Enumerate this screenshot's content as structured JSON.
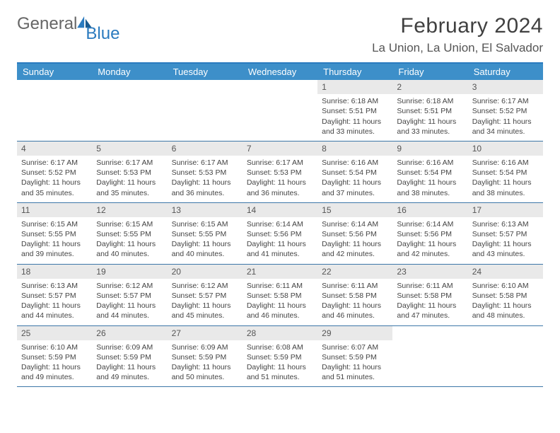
{
  "brand": {
    "part1": "General",
    "part2": "Blue"
  },
  "title": "February 2024",
  "location": "La Union, La Union, El Salvador",
  "colors": {
    "header_bar": "#3d8fc9",
    "top_rule": "#2b7bbf",
    "week_rule": "#3d77a8",
    "daynum_bg": "#e9e9e9",
    "text": "#444444",
    "title_text": "#404040"
  },
  "weekdays": [
    "Sunday",
    "Monday",
    "Tuesday",
    "Wednesday",
    "Thursday",
    "Friday",
    "Saturday"
  ],
  "grid": {
    "leading_blanks": 4,
    "days_in_month": 29
  },
  "days": {
    "1": {
      "sunrise": "6:18 AM",
      "sunset": "5:51 PM",
      "daylight": "11 hours and 33 minutes."
    },
    "2": {
      "sunrise": "6:18 AM",
      "sunset": "5:51 PM",
      "daylight": "11 hours and 33 minutes."
    },
    "3": {
      "sunrise": "6:17 AM",
      "sunset": "5:52 PM",
      "daylight": "11 hours and 34 minutes."
    },
    "4": {
      "sunrise": "6:17 AM",
      "sunset": "5:52 PM",
      "daylight": "11 hours and 35 minutes."
    },
    "5": {
      "sunrise": "6:17 AM",
      "sunset": "5:53 PM",
      "daylight": "11 hours and 35 minutes."
    },
    "6": {
      "sunrise": "6:17 AM",
      "sunset": "5:53 PM",
      "daylight": "11 hours and 36 minutes."
    },
    "7": {
      "sunrise": "6:17 AM",
      "sunset": "5:53 PM",
      "daylight": "11 hours and 36 minutes."
    },
    "8": {
      "sunrise": "6:16 AM",
      "sunset": "5:54 PM",
      "daylight": "11 hours and 37 minutes."
    },
    "9": {
      "sunrise": "6:16 AM",
      "sunset": "5:54 PM",
      "daylight": "11 hours and 38 minutes."
    },
    "10": {
      "sunrise": "6:16 AM",
      "sunset": "5:54 PM",
      "daylight": "11 hours and 38 minutes."
    },
    "11": {
      "sunrise": "6:15 AM",
      "sunset": "5:55 PM",
      "daylight": "11 hours and 39 minutes."
    },
    "12": {
      "sunrise": "6:15 AM",
      "sunset": "5:55 PM",
      "daylight": "11 hours and 40 minutes."
    },
    "13": {
      "sunrise": "6:15 AM",
      "sunset": "5:55 PM",
      "daylight": "11 hours and 40 minutes."
    },
    "14": {
      "sunrise": "6:14 AM",
      "sunset": "5:56 PM",
      "daylight": "11 hours and 41 minutes."
    },
    "15": {
      "sunrise": "6:14 AM",
      "sunset": "5:56 PM",
      "daylight": "11 hours and 42 minutes."
    },
    "16": {
      "sunrise": "6:14 AM",
      "sunset": "5:56 PM",
      "daylight": "11 hours and 42 minutes."
    },
    "17": {
      "sunrise": "6:13 AM",
      "sunset": "5:57 PM",
      "daylight": "11 hours and 43 minutes."
    },
    "18": {
      "sunrise": "6:13 AM",
      "sunset": "5:57 PM",
      "daylight": "11 hours and 44 minutes."
    },
    "19": {
      "sunrise": "6:12 AM",
      "sunset": "5:57 PM",
      "daylight": "11 hours and 44 minutes."
    },
    "20": {
      "sunrise": "6:12 AM",
      "sunset": "5:57 PM",
      "daylight": "11 hours and 45 minutes."
    },
    "21": {
      "sunrise": "6:11 AM",
      "sunset": "5:58 PM",
      "daylight": "11 hours and 46 minutes."
    },
    "22": {
      "sunrise": "6:11 AM",
      "sunset": "5:58 PM",
      "daylight": "11 hours and 46 minutes."
    },
    "23": {
      "sunrise": "6:11 AM",
      "sunset": "5:58 PM",
      "daylight": "11 hours and 47 minutes."
    },
    "24": {
      "sunrise": "6:10 AM",
      "sunset": "5:58 PM",
      "daylight": "11 hours and 48 minutes."
    },
    "25": {
      "sunrise": "6:10 AM",
      "sunset": "5:59 PM",
      "daylight": "11 hours and 49 minutes."
    },
    "26": {
      "sunrise": "6:09 AM",
      "sunset": "5:59 PM",
      "daylight": "11 hours and 49 minutes."
    },
    "27": {
      "sunrise": "6:09 AM",
      "sunset": "5:59 PM",
      "daylight": "11 hours and 50 minutes."
    },
    "28": {
      "sunrise": "6:08 AM",
      "sunset": "5:59 PM",
      "daylight": "11 hours and 51 minutes."
    },
    "29": {
      "sunrise": "6:07 AM",
      "sunset": "5:59 PM",
      "daylight": "11 hours and 51 minutes."
    }
  },
  "labels": {
    "sunrise": "Sunrise:",
    "sunset": "Sunset:",
    "daylight": "Daylight:"
  }
}
